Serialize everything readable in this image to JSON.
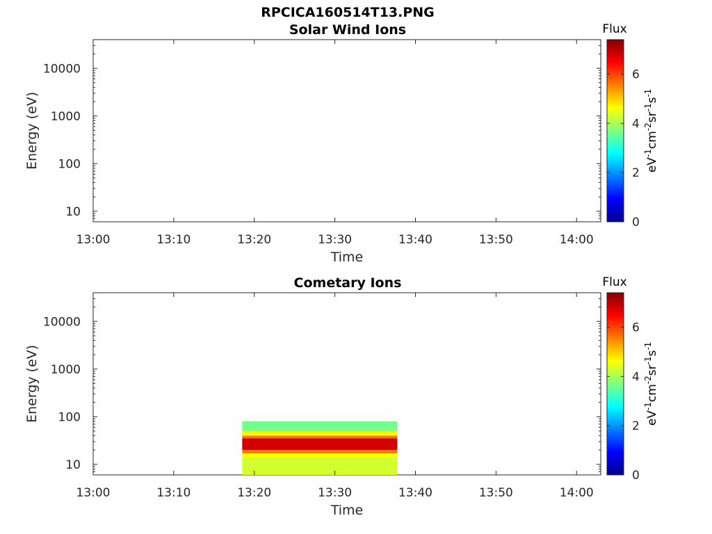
{
  "figure_title": "RPCICA160514T13.PNG",
  "chart_data": [
    {
      "type": "heatmap",
      "title": "Solar Wind Ions",
      "xlabel": "Time",
      "ylabel": "Energy (eV)",
      "x_ticks": [
        "13:00",
        "13:10",
        "13:20",
        "13:30",
        "13:40",
        "13:50",
        "14:00"
      ],
      "y_ticks": [
        "10",
        "100",
        "1000",
        "10000"
      ],
      "y_scale": "log",
      "ylim": [
        6,
        40000
      ],
      "xlim": [
        "13:00",
        "14:03"
      ],
      "colorbar": {
        "title": "Flux",
        "label": "eV-1cm-2sr-1s-1",
        "ticks": [
          "0",
          "2",
          "4",
          "6"
        ],
        "range": [
          0,
          7.4
        ],
        "colormap": "jet"
      },
      "data_blocks": []
    },
    {
      "type": "heatmap",
      "title": "Cometary Ions",
      "xlabel": "Time",
      "ylabel": "Energy (eV)",
      "x_ticks": [
        "13:00",
        "13:10",
        "13:20",
        "13:30",
        "13:40",
        "13:50",
        "14:00"
      ],
      "y_ticks": [
        "10",
        "100",
        "1000",
        "10000"
      ],
      "y_scale": "log",
      "ylim": [
        6,
        40000
      ],
      "xlim": [
        "13:00",
        "14:03"
      ],
      "colorbar": {
        "title": "Flux",
        "label": "eV-1cm-2sr-1s-1",
        "ticks": [
          "0",
          "2",
          "4",
          "6"
        ],
        "range": [
          0,
          7.4
        ],
        "colormap": "jet"
      },
      "data_blocks": [
        {
          "t_start": "13:18:30",
          "t_end": "13:37:45",
          "bands": [
            {
              "e_low": 50,
              "e_high": 80,
              "flux": 3.6
            },
            {
              "e_low": 40,
              "e_high": 50,
              "flux": 4.5
            },
            {
              "e_low": 35,
              "e_high": 40,
              "flux": 5.6
            },
            {
              "e_low": 20,
              "e_high": 35,
              "flux": 6.8
            },
            {
              "e_low": 17,
              "e_high": 20,
              "flux": 5.6
            },
            {
              "e_low": 14,
              "e_high": 17,
              "flux": 4.6
            },
            {
              "e_low": 6,
              "e_high": 14,
              "flux": 4.3
            }
          ]
        }
      ]
    }
  ]
}
